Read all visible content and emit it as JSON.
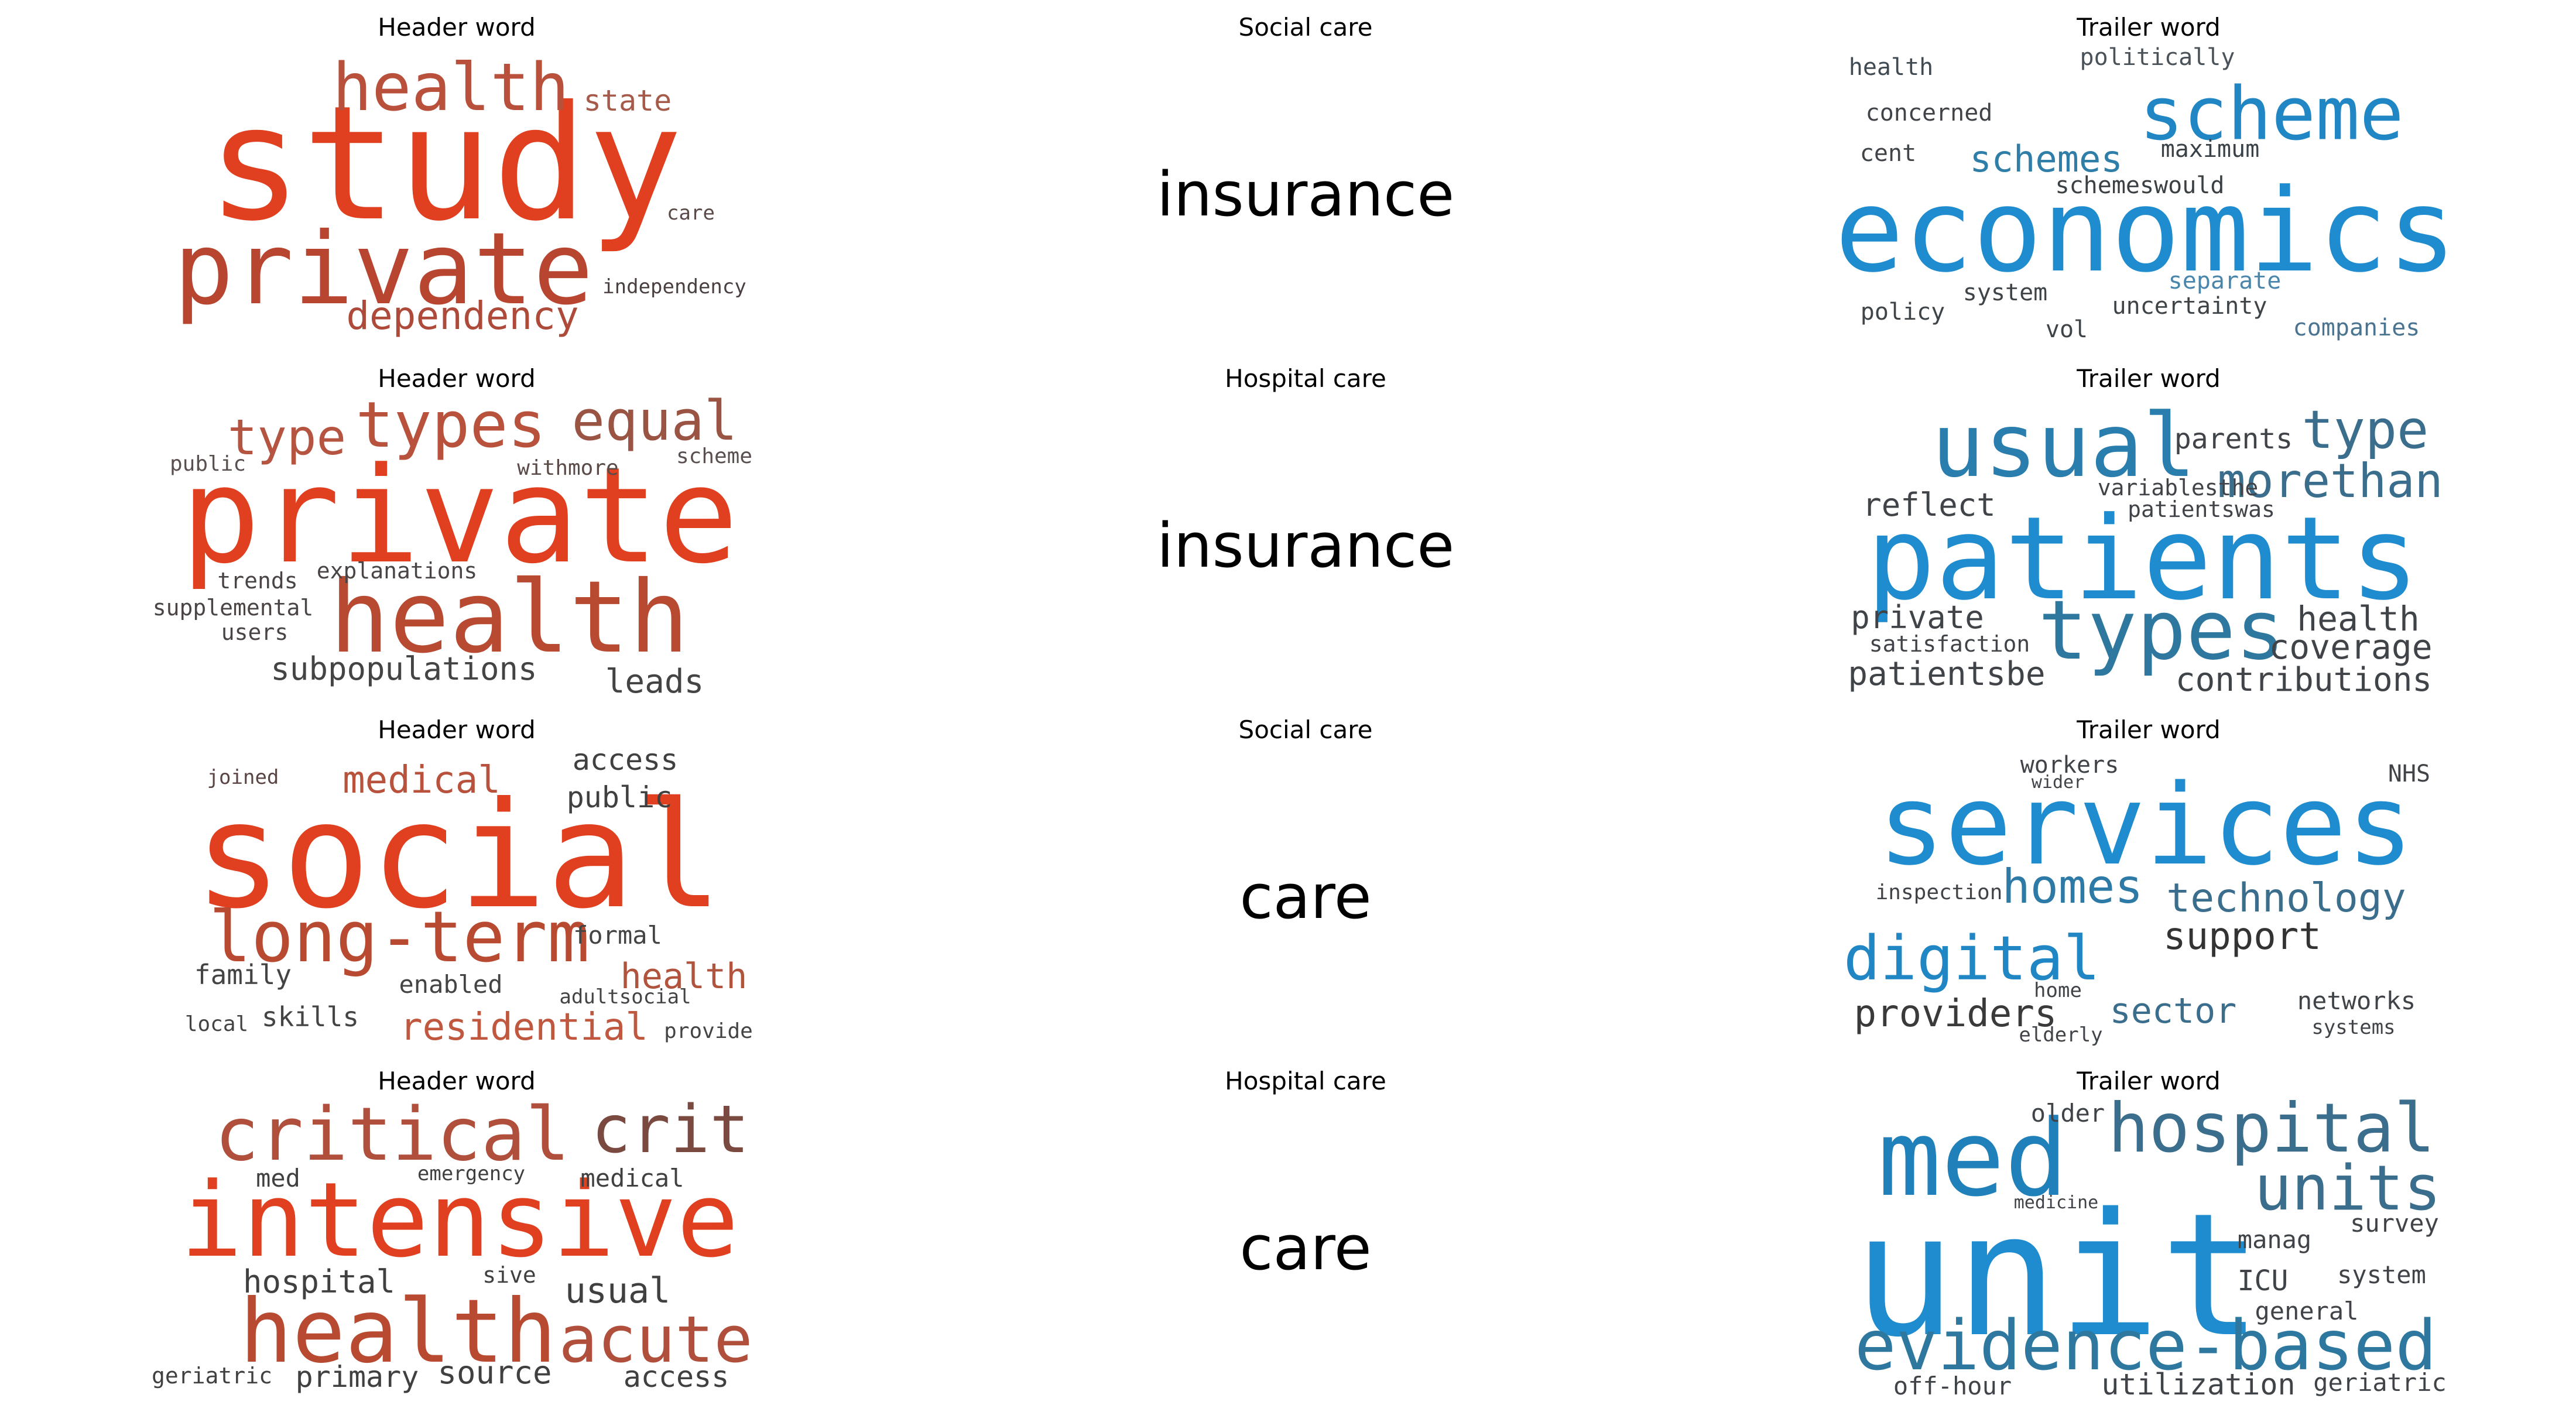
{
  "rows": [
    {
      "header": {
        "title": "Header word",
        "words": [
          {
            "text": "study",
            "color": "#e0401f"
          },
          {
            "text": "private",
            "color": "#b8452f"
          },
          {
            "text": "health",
            "color": "#b8503c"
          },
          {
            "text": "dependency",
            "color": "#ad4a3a"
          },
          {
            "text": "state",
            "color": "#a55a4a"
          },
          {
            "text": "care",
            "color": "#5a4a48"
          },
          {
            "text": "independency",
            "color": "#4a4040"
          }
        ]
      },
      "middle": {
        "title": "Social care",
        "word": "insurance"
      },
      "trailer": {
        "title": "Trailer word",
        "words": [
          {
            "text": "economics",
            "color": "#1e8cce"
          },
          {
            "text": "scheme",
            "color": "#2086c4"
          },
          {
            "text": "schemes",
            "color": "#2f7ea8"
          },
          {
            "text": "health",
            "color": "#404a52"
          },
          {
            "text": "politically",
            "color": "#4a525a"
          },
          {
            "text": "concerned",
            "color": "#404448"
          },
          {
            "text": "maximum",
            "color": "#3a4248"
          },
          {
            "text": "cent",
            "color": "#404448"
          },
          {
            "text": "schemeswould",
            "color": "#3a4044"
          },
          {
            "text": "separate",
            "color": "#4a86ac"
          },
          {
            "text": "system",
            "color": "#3e4448"
          },
          {
            "text": "uncertainty",
            "color": "#3e4448"
          },
          {
            "text": "policy",
            "color": "#3e4448"
          },
          {
            "text": "vol",
            "color": "#3e4448"
          },
          {
            "text": "companies",
            "color": "#4a7490"
          }
        ]
      }
    },
    {
      "header": {
        "title": "Header word",
        "words": [
          {
            "text": "private",
            "color": "#e0401f"
          },
          {
            "text": "health",
            "color": "#b84a32"
          },
          {
            "text": "types",
            "color": "#b8523c"
          },
          {
            "text": "equal",
            "color": "#9a5444"
          },
          {
            "text": "type",
            "color": "#b55440"
          },
          {
            "text": "public",
            "color": "#5a5050"
          },
          {
            "text": "withmore",
            "color": "#5a4a48"
          },
          {
            "text": "scheme",
            "color": "#5a5050"
          },
          {
            "text": "explanations",
            "color": "#4a4444"
          },
          {
            "text": "trends",
            "color": "#4a4444"
          },
          {
            "text": "supplemental",
            "color": "#4a4444"
          },
          {
            "text": "users",
            "color": "#4a4444"
          },
          {
            "text": "subpopulations",
            "color": "#444444"
          },
          {
            "text": "leads",
            "color": "#444444"
          }
        ]
      },
      "middle": {
        "title": "Hospital care",
        "word": "insurance"
      },
      "trailer": {
        "title": "Trailer word",
        "words": [
          {
            "text": "patients",
            "color": "#1e8cce"
          },
          {
            "text": "usual",
            "color": "#2a7eae"
          },
          {
            "text": "types",
            "color": "#2e78a0"
          },
          {
            "text": "type",
            "color": "#3a6e8c"
          },
          {
            "text": "morethan",
            "color": "#3a6e8c"
          },
          {
            "text": "parents",
            "color": "#404448"
          },
          {
            "text": "variablesthe",
            "color": "#404448"
          },
          {
            "text": "patientswas",
            "color": "#404448"
          },
          {
            "text": "reflect",
            "color": "#404448"
          },
          {
            "text": "private",
            "color": "#404448"
          },
          {
            "text": "satisfaction",
            "color": "#404448"
          },
          {
            "text": "health",
            "color": "#404448"
          },
          {
            "text": "coverage",
            "color": "#404448"
          },
          {
            "text": "patientsbe",
            "color": "#404448"
          },
          {
            "text": "contributions",
            "color": "#404448"
          }
        ]
      }
    },
    {
      "header": {
        "title": "Header word",
        "words": [
          {
            "text": "social",
            "color": "#e0401f"
          },
          {
            "text": "long-term",
            "color": "#b84a32"
          },
          {
            "text": "medical",
            "color": "#b8523c"
          },
          {
            "text": "residential",
            "color": "#c05840"
          },
          {
            "text": "health",
            "color": "#b0543e"
          },
          {
            "text": "access",
            "color": "#404040"
          },
          {
            "text": "public",
            "color": "#404040"
          },
          {
            "text": "joined",
            "color": "#5a4444"
          },
          {
            "text": "formal",
            "color": "#444444"
          },
          {
            "text": "family",
            "color": "#444444"
          },
          {
            "text": "enabled",
            "color": "#444444"
          },
          {
            "text": "adultsocial",
            "color": "#444444"
          },
          {
            "text": "skills",
            "color": "#444444"
          },
          {
            "text": "local",
            "color": "#444444"
          },
          {
            "text": "provide",
            "color": "#444444"
          }
        ]
      },
      "middle": {
        "title": "Social care",
        "word": "care"
      },
      "trailer": {
        "title": "Trailer word",
        "words": [
          {
            "text": "services",
            "color": "#1e8cce"
          },
          {
            "text": "digital",
            "color": "#2086c4"
          },
          {
            "text": "homes",
            "color": "#2e7aa6"
          },
          {
            "text": "technology",
            "color": "#3a6e8c"
          },
          {
            "text": "support",
            "color": "#333333"
          },
          {
            "text": "providers",
            "color": "#3a3a3a"
          },
          {
            "text": "sector",
            "color": "#3a6e8c"
          },
          {
            "text": "workers",
            "color": "#404448"
          },
          {
            "text": "wider",
            "color": "#404448"
          },
          {
            "text": "NHS",
            "color": "#404448"
          },
          {
            "text": "inspection",
            "color": "#404448"
          },
          {
            "text": "home",
            "color": "#404448"
          },
          {
            "text": "elderly",
            "color": "#404448"
          },
          {
            "text": "networks",
            "color": "#404448"
          },
          {
            "text": "systems",
            "color": "#404448"
          }
        ]
      }
    },
    {
      "header": {
        "title": "Header word",
        "words": [
          {
            "text": "intensive",
            "color": "#e0401f"
          },
          {
            "text": "health",
            "color": "#b84a32"
          },
          {
            "text": "critical",
            "color": "#b0503c"
          },
          {
            "text": "crit",
            "color": "#7a4a40"
          },
          {
            "text": "acute",
            "color": "#b0503c"
          },
          {
            "text": "hospital",
            "color": "#404040"
          },
          {
            "text": "usual",
            "color": "#404040"
          },
          {
            "text": "med",
            "color": "#404040"
          },
          {
            "text": "emergency",
            "color": "#404040"
          },
          {
            "text": "medical",
            "color": "#404040"
          },
          {
            "text": "sive",
            "color": "#404040"
          },
          {
            "text": "geriatric",
            "color": "#404040"
          },
          {
            "text": "primary",
            "color": "#404040"
          },
          {
            "text": "source",
            "color": "#404040"
          },
          {
            "text": "access",
            "color": "#404040"
          }
        ]
      },
      "middle": {
        "title": "Hospital care",
        "word": "care"
      },
      "trailer": {
        "title": "Trailer word",
        "words": [
          {
            "text": "unit",
            "color": "#1e8cce"
          },
          {
            "text": "med",
            "color": "#2080ba"
          },
          {
            "text": "hospital",
            "color": "#3a6e8c"
          },
          {
            "text": "units",
            "color": "#3a6e8c"
          },
          {
            "text": "evidence-based",
            "color": "#2e78a0"
          },
          {
            "text": "older",
            "color": "#404448"
          },
          {
            "text": "medicine",
            "color": "#404448"
          },
          {
            "text": "survey",
            "color": "#404448"
          },
          {
            "text": "manag",
            "color": "#404448"
          },
          {
            "text": "ICU",
            "color": "#404448"
          },
          {
            "text": "system",
            "color": "#404448"
          },
          {
            "text": "general",
            "color": "#404448"
          },
          {
            "text": "off-hour",
            "color": "#404448"
          },
          {
            "text": "utilization",
            "color": "#404448"
          },
          {
            "text": "geriatric",
            "color": "#404448"
          }
        ]
      }
    }
  ]
}
